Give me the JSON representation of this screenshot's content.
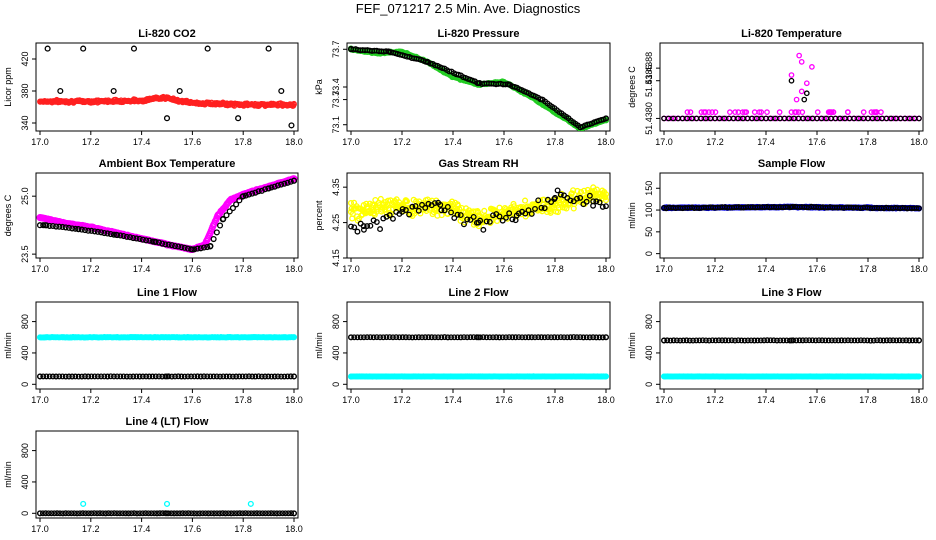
{
  "title": "FEF_071217  2.5 Min. Ave. Diagnostics",
  "colors": {
    "red": "#ff2020",
    "black": "#000000",
    "green": "#22cc22",
    "magenta": "#ff00ff",
    "yellow": "#ffff00",
    "blue": "#0000ee",
    "cyan": "#00ffff"
  },
  "chart_data": [
    {
      "type": "scatter",
      "title": "Li-820 CO2",
      "ylabel": "Licor ppm",
      "xlim": [
        17.0,
        18.0
      ],
      "ylim": [
        330,
        440
      ],
      "x_ticks": [
        "17.0",
        "17.2",
        "17.4",
        "17.6",
        "17.8",
        "18.0"
      ],
      "y_ticks": [
        340,
        380,
        420
      ],
      "series": [
        {
          "color": "red",
          "x": [
            17.0,
            17.2,
            17.4,
            17.48,
            17.6,
            17.8,
            18.0
          ],
          "y": [
            367,
            367,
            368,
            372,
            365,
            363,
            363
          ]
        },
        {
          "color": "black",
          "x": [
            17.03,
            17.08,
            17.17,
            17.29,
            17.37,
            17.5,
            17.55,
            17.66,
            17.78,
            17.9,
            17.95,
            17.99
          ],
          "y": [
            433,
            380,
            433,
            380,
            433,
            346,
            380,
            433,
            346,
            433,
            380,
            337
          ]
        }
      ]
    },
    {
      "type": "scatter",
      "title": "Li-820 Pressure",
      "ylabel": "kPa",
      "xlim": [
        17.0,
        18.0
      ],
      "ylim": [
        73.05,
        73.75
      ],
      "x_ticks": [
        "17.0",
        "17.2",
        "17.4",
        "17.6",
        "17.8",
        "18.0"
      ],
      "y_ticks": [
        "73.1",
        "73.3",
        "73.4",
        "73.7"
      ],
      "series": [
        {
          "color": "green",
          "x": [
            17.0,
            17.1,
            17.2,
            17.3,
            17.4,
            17.5,
            17.6,
            17.7,
            17.8,
            17.9,
            18.0
          ],
          "y": [
            73.7,
            73.67,
            73.68,
            73.6,
            73.48,
            73.42,
            73.44,
            73.33,
            73.2,
            73.07,
            73.14
          ]
        },
        {
          "color": "black",
          "x": [
            17.0,
            17.15,
            17.3,
            17.5,
            17.62,
            17.75,
            17.9,
            18.0
          ],
          "y": [
            73.7,
            73.68,
            73.6,
            73.43,
            73.42,
            73.3,
            73.08,
            73.15
          ]
        }
      ]
    },
    {
      "type": "scatter",
      "title": "Li-820 Temperature",
      "ylabel": "degrees C",
      "xlim": [
        17.0,
        18.0
      ],
      "ylim": [
        51.4378,
        51.4392
      ],
      "x_ticks": [
        "17.0",
        "17.2",
        "17.4",
        "17.6",
        "17.8",
        "18.0"
      ],
      "y_ticks": [
        "51.4380",
        "51.4386",
        "51.4388"
      ],
      "series": [
        {
          "color": "magenta",
          "x": [
            17.0,
            17.3,
            17.45,
            17.52,
            17.54,
            17.56,
            17.7,
            18.0
          ],
          "y": [
            51.438,
            51.4381,
            51.4381,
            51.439,
            51.4389,
            51.4388,
            51.4381,
            51.438
          ]
        },
        {
          "color": "black",
          "x": [
            17.0,
            17.5,
            17.55,
            18.0
          ],
          "y": [
            51.438,
            51.4386,
            51.4385,
            51.438
          ]
        }
      ]
    },
    {
      "type": "scatter",
      "title": "Ambient Box Temperature",
      "ylabel": "degrees C",
      "xlim": [
        17.0,
        18.0
      ],
      "ylim": [
        23.4,
        25.6
      ],
      "x_ticks": [
        "17.0",
        "17.2",
        "17.4",
        "17.6",
        "17.8",
        "18.0"
      ],
      "y_ticks": [
        "23.5",
        "25.0"
      ],
      "series": [
        {
          "color": "magenta",
          "x": [
            17.0,
            17.1,
            17.2,
            17.3,
            17.4,
            17.5,
            17.6,
            17.65,
            17.7,
            17.75,
            17.8,
            17.9,
            18.0
          ],
          "y": [
            24.45,
            24.3,
            24.2,
            24.05,
            23.9,
            23.75,
            23.62,
            23.75,
            24.5,
            24.9,
            25.05,
            25.25,
            25.45
          ]
        },
        {
          "color": "black",
          "x": [
            17.02,
            17.15,
            17.3,
            17.45,
            17.6,
            17.67,
            17.72,
            17.8,
            17.9,
            18.0
          ],
          "y": [
            24.25,
            24.15,
            24.0,
            23.82,
            23.62,
            23.7,
            24.4,
            25.0,
            25.2,
            25.4
          ]
        }
      ]
    },
    {
      "type": "scatter",
      "title": "Gas Stream RH",
      "ylabel": "percent",
      "xlim": [
        17.0,
        18.0
      ],
      "ylim": [
        4.15,
        4.39
      ],
      "x_ticks": [
        "17.0",
        "17.2",
        "17.4",
        "17.6",
        "17.8",
        "18.0"
      ],
      "y_ticks": [
        "4.15",
        "4.25",
        "4.35"
      ],
      "series": [
        {
          "color": "yellow",
          "x": [
            17.0,
            17.2,
            17.4,
            17.5,
            17.6,
            17.8,
            17.9,
            18.0
          ],
          "y": [
            4.28,
            4.3,
            4.29,
            4.26,
            4.28,
            4.3,
            4.32,
            4.33
          ]
        },
        {
          "color": "black",
          "x": [
            17.05,
            17.2,
            17.35,
            17.5,
            17.65,
            17.8,
            17.95
          ],
          "y": [
            4.24,
            4.28,
            4.3,
            4.25,
            4.27,
            4.32,
            4.31
          ]
        }
      ]
    },
    {
      "type": "scatter",
      "title": "Sample Flow",
      "ylabel": "ml/min",
      "xlim": [
        17.0,
        18.0
      ],
      "ylim": [
        -10,
        185
      ],
      "x_ticks": [
        "17.0",
        "17.2",
        "17.4",
        "17.6",
        "17.8",
        "18.0"
      ],
      "y_ticks": [
        0,
        50,
        100,
        150
      ],
      "series": [
        {
          "color": "blue",
          "x": [
            17.0,
            17.5,
            18.0
          ],
          "y": [
            105,
            107,
            104
          ]
        },
        {
          "color": "black",
          "x": [
            17.0,
            17.5,
            18.0
          ],
          "y": [
            105,
            107,
            104
          ]
        }
      ]
    },
    {
      "type": "scatter",
      "title": "Line 1 Flow",
      "ylabel": "ml/min",
      "xlim": [
        17.0,
        18.0
      ],
      "ylim": [
        -60,
        1050
      ],
      "x_ticks": [
        "17.0",
        "17.2",
        "17.4",
        "17.6",
        "17.8",
        "18.0"
      ],
      "y_ticks": [
        0,
        400,
        800
      ],
      "series": [
        {
          "color": "cyan",
          "x": [
            17.0,
            17.5,
            18.0
          ],
          "y": [
            600,
            600,
            600
          ]
        },
        {
          "color": "black",
          "x": [
            17.0,
            17.5,
            18.0
          ],
          "y": [
            100,
            100,
            100
          ]
        }
      ]
    },
    {
      "type": "scatter",
      "title": "Line 2 Flow",
      "ylabel": "ml/min",
      "xlim": [
        17.0,
        18.0
      ],
      "ylim": [
        -60,
        1050
      ],
      "x_ticks": [
        "17.0",
        "17.2",
        "17.4",
        "17.6",
        "17.8",
        "18.0"
      ],
      "y_ticks": [
        0,
        400,
        800
      ],
      "series": [
        {
          "color": "cyan",
          "x": [
            17.0,
            17.5,
            18.0
          ],
          "y": [
            100,
            100,
            100
          ]
        },
        {
          "color": "black",
          "x": [
            17.0,
            17.5,
            18.0
          ],
          "y": [
            600,
            600,
            600
          ]
        }
      ]
    },
    {
      "type": "scatter",
      "title": "Line 3 Flow",
      "ylabel": "ml/min",
      "xlim": [
        17.0,
        18.0
      ],
      "ylim": [
        -60,
        1050
      ],
      "x_ticks": [
        "17.0",
        "17.2",
        "17.4",
        "17.6",
        "17.8",
        "18.0"
      ],
      "y_ticks": [
        0,
        400,
        800
      ],
      "series": [
        {
          "color": "cyan",
          "x": [
            17.0,
            17.5,
            18.0
          ],
          "y": [
            100,
            100,
            100
          ]
        },
        {
          "color": "black",
          "x": [
            17.0,
            17.5,
            18.0
          ],
          "y": [
            560,
            560,
            560
          ]
        }
      ]
    },
    {
      "type": "scatter",
      "title": "Line 4 (LT) Flow",
      "ylabel": "ml/min",
      "xlim": [
        17.0,
        18.0
      ],
      "ylim": [
        -60,
        1050
      ],
      "x_ticks": [
        "17.0",
        "17.2",
        "17.4",
        "17.6",
        "17.8",
        "18.0"
      ],
      "y_ticks": [
        0,
        400,
        800
      ],
      "series": [
        {
          "color": "black",
          "x": [
            17.0,
            17.5,
            18.0
          ],
          "y": [
            0,
            0,
            0
          ]
        },
        {
          "color": "cyan",
          "x": [
            17.17,
            17.5,
            17.83
          ],
          "y": [
            120,
            120,
            120
          ]
        }
      ]
    }
  ]
}
